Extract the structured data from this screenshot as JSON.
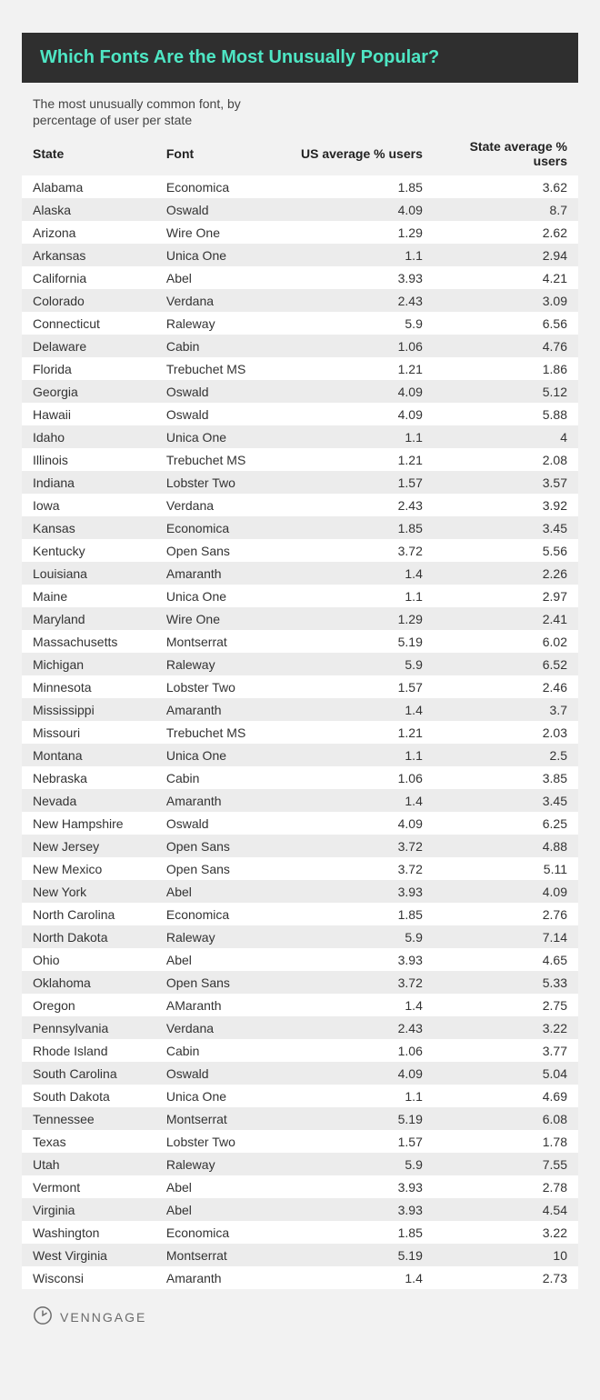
{
  "title": "Which Fonts Are the Most Unusually Popular?",
  "subtitle": "The most unusually common font, by percentage of user per state",
  "footer_brand": "VENNGAGE",
  "title_bar_bg": "#2f2f2f",
  "title_color": "#4ee6c4",
  "page_bg": "#f2f2f2",
  "row_bg_a": "#ffffff",
  "row_bg_b": "#ececec",
  "text_color": "#2d2d2d",
  "font_family": "Helvetica Neue, Helvetica, Arial, sans-serif",
  "base_fontsize": 14,
  "title_fontsize": 20,
  "columns": [
    {
      "key": "state",
      "label": "State",
      "align": "left"
    },
    {
      "key": "font",
      "label": "Font",
      "align": "left"
    },
    {
      "key": "us_avg",
      "label": "US average % users",
      "align": "right"
    },
    {
      "key": "state_avg",
      "label": "State average % users",
      "align": "right"
    }
  ],
  "rows": [
    {
      "state": "Alabama",
      "font": "Economica",
      "us_avg": "1.85",
      "state_avg": "3.62"
    },
    {
      "state": "Alaska",
      "font": "Oswald",
      "us_avg": "4.09",
      "state_avg": "8.7"
    },
    {
      "state": "Arizona",
      "font": "Wire One",
      "us_avg": "1.29",
      "state_avg": "2.62"
    },
    {
      "state": "Arkansas",
      "font": "Unica One",
      "us_avg": "1.1",
      "state_avg": "2.94"
    },
    {
      "state": "California",
      "font": "Abel",
      "us_avg": "3.93",
      "state_avg": "4.21"
    },
    {
      "state": "Colorado",
      "font": "Verdana",
      "us_avg": "2.43",
      "state_avg": "3.09"
    },
    {
      "state": "Connecticut",
      "font": "Raleway",
      "us_avg": "5.9",
      "state_avg": "6.56"
    },
    {
      "state": "Delaware",
      "font": "Cabin",
      "us_avg": "1.06",
      "state_avg": "4.76"
    },
    {
      "state": "Florida",
      "font": "Trebuchet MS",
      "us_avg": "1.21",
      "state_avg": "1.86"
    },
    {
      "state": "Georgia",
      "font": "Oswald",
      "us_avg": "4.09",
      "state_avg": "5.12"
    },
    {
      "state": "Hawaii",
      "font": "Oswald",
      "us_avg": "4.09",
      "state_avg": "5.88"
    },
    {
      "state": "Idaho",
      "font": "Unica One",
      "us_avg": "1.1",
      "state_avg": "4"
    },
    {
      "state": "Illinois",
      "font": "Trebuchet MS",
      "us_avg": "1.21",
      "state_avg": "2.08"
    },
    {
      "state": "Indiana",
      "font": "Lobster Two",
      "us_avg": "1.57",
      "state_avg": "3.57"
    },
    {
      "state": "Iowa",
      "font": "Verdana",
      "us_avg": "2.43",
      "state_avg": "3.92"
    },
    {
      "state": "Kansas",
      "font": "Economica",
      "us_avg": "1.85",
      "state_avg": "3.45"
    },
    {
      "state": "Kentucky",
      "font": "Open Sans",
      "us_avg": "3.72",
      "state_avg": "5.56"
    },
    {
      "state": "Louisiana",
      "font": "Amaranth",
      "us_avg": "1.4",
      "state_avg": "2.26"
    },
    {
      "state": "Maine",
      "font": "Unica One",
      "us_avg": "1.1",
      "state_avg": "2.97"
    },
    {
      "state": "Maryland",
      "font": "Wire One",
      "us_avg": "1.29",
      "state_avg": "2.41"
    },
    {
      "state": "Massachusetts",
      "font": "Montserrat",
      "us_avg": "5.19",
      "state_avg": "6.02"
    },
    {
      "state": "Michigan",
      "font": "Raleway",
      "us_avg": "5.9",
      "state_avg": "6.52"
    },
    {
      "state": "Minnesota",
      "font": "Lobster Two",
      "us_avg": "1.57",
      "state_avg": "2.46"
    },
    {
      "state": "Mississippi",
      "font": "Amaranth",
      "us_avg": "1.4",
      "state_avg": "3.7"
    },
    {
      "state": "Missouri",
      "font": "Trebuchet MS",
      "us_avg": "1.21",
      "state_avg": "2.03"
    },
    {
      "state": "Montana",
      "font": "Unica One",
      "us_avg": "1.1",
      "state_avg": "2.5"
    },
    {
      "state": "Nebraska",
      "font": "Cabin",
      "us_avg": "1.06",
      "state_avg": "3.85"
    },
    {
      "state": "Nevada",
      "font": "Amaranth",
      "us_avg": "1.4",
      "state_avg": "3.45"
    },
    {
      "state": "New Hampshire",
      "font": "Oswald",
      "us_avg": "4.09",
      "state_avg": "6.25"
    },
    {
      "state": "New Jersey",
      "font": "Open Sans",
      "us_avg": "3.72",
      "state_avg": "4.88"
    },
    {
      "state": "New Mexico",
      "font": "Open Sans",
      "us_avg": "3.72",
      "state_avg": "5.11"
    },
    {
      "state": "New York",
      "font": "Abel",
      "us_avg": "3.93",
      "state_avg": "4.09"
    },
    {
      "state": "North Carolina",
      "font": "Economica",
      "us_avg": "1.85",
      "state_avg": "2.76"
    },
    {
      "state": "North Dakota",
      "font": "Raleway",
      "us_avg": "5.9",
      "state_avg": "7.14"
    },
    {
      "state": "Ohio",
      "font": "Abel",
      "us_avg": "3.93",
      "state_avg": "4.65"
    },
    {
      "state": "Oklahoma",
      "font": "Open Sans",
      "us_avg": "3.72",
      "state_avg": "5.33"
    },
    {
      "state": "Oregon",
      "font": "AMaranth",
      "us_avg": "1.4",
      "state_avg": "2.75"
    },
    {
      "state": "Pennsylvania",
      "font": "Verdana",
      "us_avg": "2.43",
      "state_avg": "3.22"
    },
    {
      "state": "Rhode Island",
      "font": "Cabin",
      "us_avg": "1.06",
      "state_avg": "3.77"
    },
    {
      "state": "South Carolina",
      "font": "Oswald",
      "us_avg": "4.09",
      "state_avg": "5.04"
    },
    {
      "state": "South Dakota",
      "font": "Unica One",
      "us_avg": "1.1",
      "state_avg": "4.69"
    },
    {
      "state": "Tennessee",
      "font": "Montserrat",
      "us_avg": "5.19",
      "state_avg": "6.08"
    },
    {
      "state": "Texas",
      "font": "Lobster Two",
      "us_avg": "1.57",
      "state_avg": "1.78"
    },
    {
      "state": "Utah",
      "font": "Raleway",
      "us_avg": "5.9",
      "state_avg": "7.55"
    },
    {
      "state": "Vermont",
      "font": "Abel",
      "us_avg": "3.93",
      "state_avg": "2.78"
    },
    {
      "state": "Virginia",
      "font": "Abel",
      "us_avg": "3.93",
      "state_avg": "4.54"
    },
    {
      "state": "Washington",
      "font": "Economica",
      "us_avg": "1.85",
      "state_avg": "3.22"
    },
    {
      "state": "West Virginia",
      "font": "Montserrat",
      "us_avg": "5.19",
      "state_avg": "10"
    },
    {
      "state": "Wisconsi",
      "font": "Amaranth",
      "us_avg": "1.4",
      "state_avg": "2.73"
    }
  ]
}
